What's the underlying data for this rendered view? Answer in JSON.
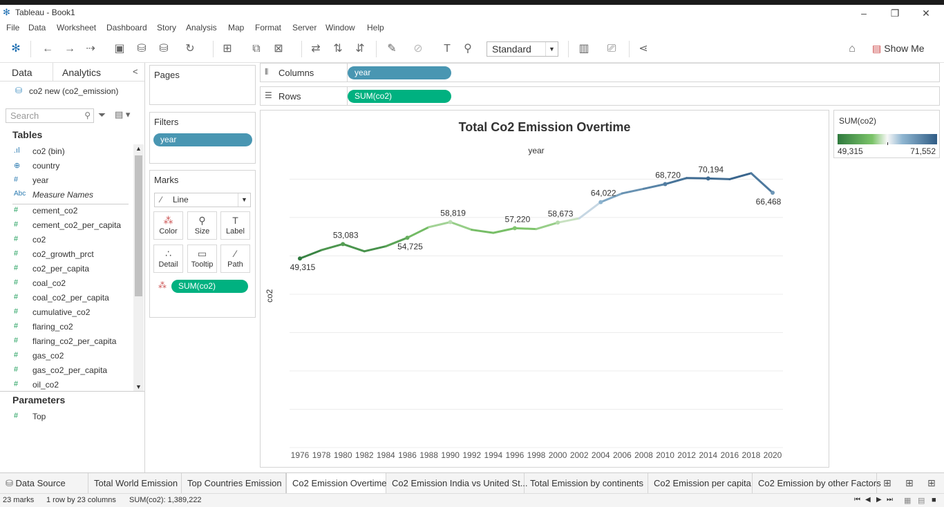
{
  "window": {
    "title": "Tableau - Book1"
  },
  "menu": [
    "File",
    "Data",
    "Worksheet",
    "Dashboard",
    "Story",
    "Analysis",
    "Map",
    "Format",
    "Server",
    "Window",
    "Help"
  ],
  "toolbar": {
    "fit_select": "Standard",
    "show_me": "Show Me"
  },
  "data_pane": {
    "tabs": [
      "Data",
      "Analytics"
    ],
    "datasource": "co2 new (co2_emission)",
    "search_placeholder": "Search",
    "tables_header": "Tables",
    "dimensions": [
      {
        "label": "co2 (bin)",
        "icon": "bar-chart-icon"
      },
      {
        "label": "country",
        "icon": "globe-icon"
      },
      {
        "label": "year",
        "icon": "hash-icon"
      },
      {
        "label": "Measure Names",
        "icon": "abc-icon"
      }
    ],
    "measures": [
      "cement_co2",
      "cement_co2_per_capita",
      "co2",
      "co2_growth_prct",
      "co2_per_capita",
      "coal_co2",
      "coal_co2_per_capita",
      "cumulative_co2",
      "flaring_co2",
      "flaring_co2_per_capita",
      "gas_co2",
      "gas_co2_per_capita",
      "oil_co2"
    ],
    "parameters_header": "Parameters",
    "parameters": [
      "Top"
    ]
  },
  "cards": {
    "pages": "Pages",
    "filters": "Filters",
    "filter_pill": "year",
    "marks": "Marks",
    "mark_type": "Line",
    "mark_buttons": [
      "Color",
      "Size",
      "Label",
      "Detail",
      "Tooltip",
      "Path"
    ],
    "marks_pill": "SUM(co2)"
  },
  "shelves": {
    "columns_label": "Columns",
    "columns_pill": "year",
    "rows_label": "Rows",
    "rows_pill": "SUM(co2)"
  },
  "legend": {
    "title": "SUM(co2)",
    "min": "49,315",
    "max": "71,552"
  },
  "chart_data": {
    "type": "line",
    "title": "Total Co2 Emission Overtime",
    "xlabel": "year",
    "ylabel": "co2",
    "x": [
      "1976",
      "1978",
      "1980",
      "1982",
      "1984",
      "1986",
      "1988",
      "1990",
      "1992",
      "1994",
      "1996",
      "1998",
      "2000",
      "2002",
      "2004",
      "2006",
      "2008",
      "2010",
      "2012",
      "2014",
      "2016",
      "2018",
      "2020"
    ],
    "values": [
      49315,
      51500,
      53083,
      51200,
      52500,
      54725,
      57500,
      58819,
      56800,
      56000,
      57220,
      57000,
      58673,
      59800,
      64022,
      66300,
      67500,
      68720,
      70300,
      70194,
      70000,
      71552,
      66468
    ],
    "labels": [
      {
        "index": 0,
        "text": "49,315"
      },
      {
        "index": 2,
        "text": "53,083"
      },
      {
        "index": 5,
        "text": "54,725"
      },
      {
        "index": 7,
        "text": "58,819"
      },
      {
        "index": 10,
        "text": "57,220"
      },
      {
        "index": 12,
        "text": "58,673"
      },
      {
        "index": 14,
        "text": "64,022"
      },
      {
        "index": 17,
        "text": "68,720"
      },
      {
        "index": 19,
        "text": "70,194"
      },
      {
        "index": 22,
        "text": "66,468"
      }
    ],
    "color_min": "#2f7a3e",
    "color_mid": "#f2f2f2",
    "color_max": "#2f5c85"
  },
  "sheet_tabs": [
    "Data Source",
    "Total World Emission",
    "Top Countries Emission",
    "Co2 Emission Overtime",
    "Co2 Emission India vs United St...",
    "Total Emission by continents",
    "Co2 Emission per capita",
    "Co2 Emission by other Factors"
  ],
  "active_tab": "Co2 Emission Overtime",
  "status": {
    "marks": "23 marks",
    "layout": "1 row by 23 columns",
    "sum": "SUM(co2): 1,389,222"
  }
}
